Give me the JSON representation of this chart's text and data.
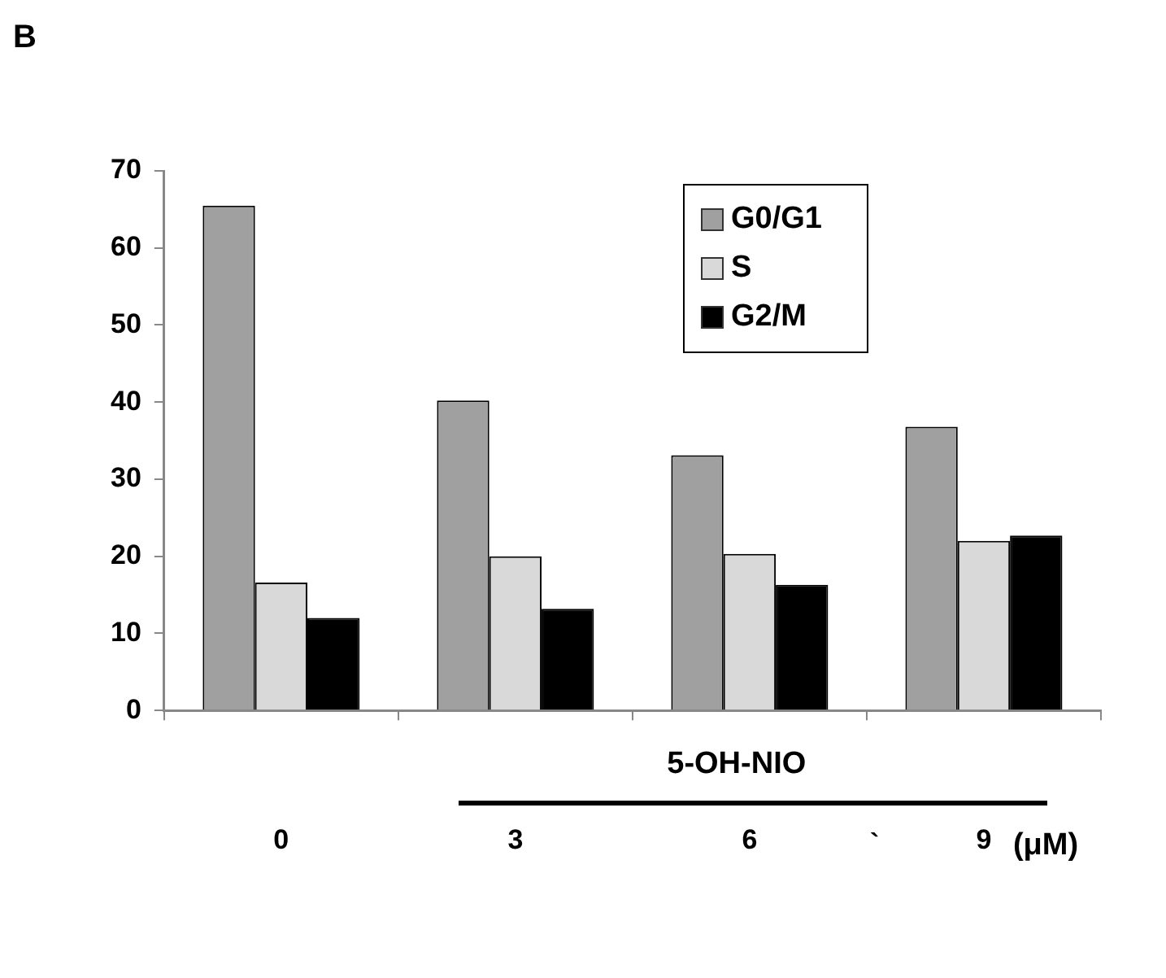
{
  "chart_data": {
    "type": "bar",
    "categories": [
      "0",
      "3",
      "6",
      "9"
    ],
    "xlabel": "(μM)",
    "series": [
      {
        "name": "G0/G1",
        "color": "#a0a0a0",
        "values": [
          65.5,
          40.2,
          33.1,
          36.8
        ]
      },
      {
        "name": "S",
        "color": "#d9d9d9",
        "values": [
          16.6,
          20.0,
          20.3,
          22.0
        ]
      },
      {
        "name": "G2/M",
        "color": "#000000",
        "values": [
          12.0,
          13.2,
          16.3,
          22.7
        ]
      }
    ],
    "ylim": [
      0,
      70
    ],
    "yticks": [
      0,
      10,
      20,
      30,
      40,
      50,
      60,
      70
    ],
    "grid": false,
    "legend": "top right",
    "annotations": [
      "B",
      "5-OH-NIO",
      "`"
    ]
  }
}
